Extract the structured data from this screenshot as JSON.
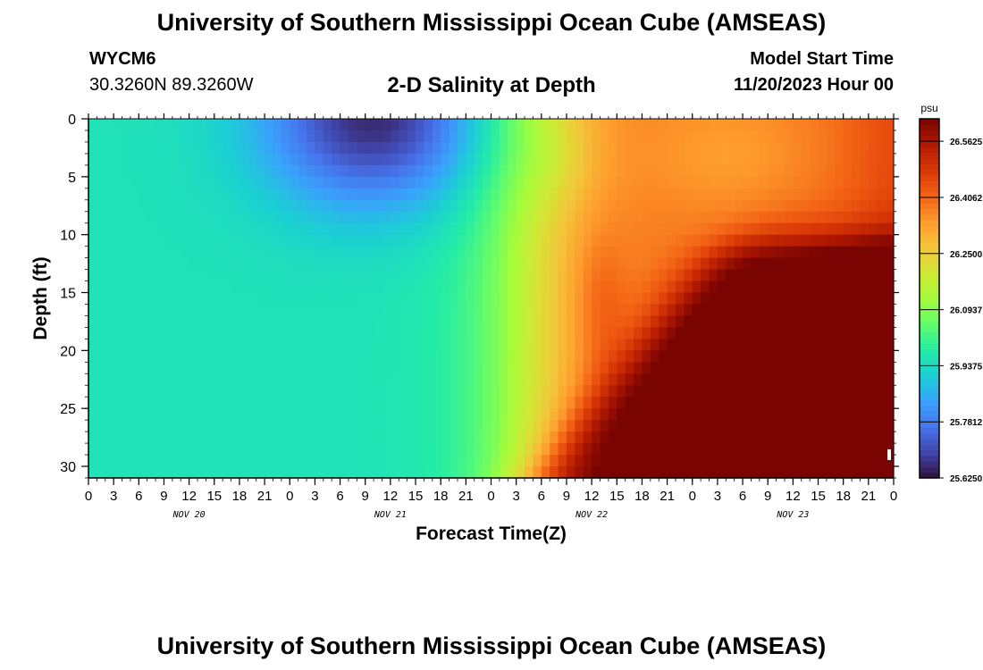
{
  "header": {
    "title": "University of Southern Mississippi Ocean Cube (AMSEAS)",
    "station_name": "WYCM6",
    "station_coords": "30.3260N  89.3260W",
    "plot_title": "2-D Salinity at Depth",
    "model_start_label": "Model Start Time",
    "model_start_value": "11/20/2023 Hour 00"
  },
  "footer": {
    "title": "University of Southern Mississippi Ocean Cube (AMSEAS)"
  },
  "chart_data": {
    "type": "heatmap",
    "xlabel": "Forecast Time(Z)",
    "ylabel": "Depth (ft)",
    "xlim": [
      0,
      96
    ],
    "ylim": [
      31,
      0
    ],
    "x_ticks": [
      0,
      3,
      6,
      9,
      12,
      15,
      18,
      21,
      24,
      27,
      30,
      33,
      36,
      39,
      42,
      45,
      48,
      51,
      54,
      57,
      60,
      63,
      66,
      69,
      72,
      75,
      78,
      81,
      84,
      87,
      90,
      93,
      96
    ],
    "x_tick_labels": [
      "0",
      "3",
      "6",
      "9",
      "12",
      "15",
      "18",
      "21",
      "0",
      "3",
      "6",
      "9",
      "12",
      "15",
      "18",
      "21",
      "0",
      "3",
      "6",
      "9",
      "12",
      "15",
      "18",
      "21",
      "0",
      "3",
      "6",
      "9",
      "12",
      "15",
      "18",
      "21",
      "0"
    ],
    "day_labels": [
      {
        "hour": 12,
        "label": "NOV 20"
      },
      {
        "hour": 36,
        "label": "NOV 21"
      },
      {
        "hour": 60,
        "label": "NOV 22"
      },
      {
        "hour": 84,
        "label": "NOV 23"
      }
    ],
    "y_ticks": [
      0,
      5,
      10,
      15,
      20,
      25,
      30
    ],
    "y_tick_labels": [
      "0",
      "5",
      "10",
      "15",
      "20",
      "25",
      "30"
    ],
    "colorbar": {
      "unit": "psu",
      "min": 25.625,
      "max": 26.625,
      "ticks": [
        26.5625,
        26.40625,
        26.25,
        26.09375,
        25.9375,
        25.78125,
        25.625
      ],
      "tick_labels": [
        "26.5625",
        "26.4062",
        "26.2500",
        "26.0937",
        "25.9375",
        "25.7812",
        "25.6250"
      ],
      "colormap": [
        "#30123b",
        "#4145ab",
        "#4675ed",
        "#39a2fc",
        "#1bcfd4",
        "#24eca6",
        "#61fc6c",
        "#a4fc3b",
        "#d1e834",
        "#f3c63a",
        "#fe9b2d",
        "#f36315",
        "#d93806",
        "#b11901",
        "#7a0402"
      ]
    }
  }
}
